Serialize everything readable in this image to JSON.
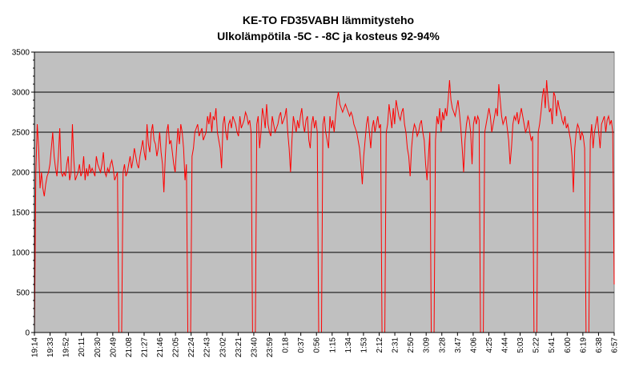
{
  "chart_data": {
    "type": "line",
    "title": "KE-TO FD35VABH lämmitysteho",
    "subtitle": "Ulkolämpötila  -5C - -8C ja kosteus 92-94%",
    "xlabel": "",
    "ylabel": "",
    "ylim": [
      0,
      3500
    ],
    "yticks": [
      0,
      500,
      1000,
      1500,
      2000,
      2500,
      3000,
      3500
    ],
    "ytick_labels": [
      "0",
      "500",
      "1000",
      "1500",
      "2000",
      "2500",
      "3000",
      "3500"
    ],
    "x_tick_labels": [
      "19:14",
      "19:33",
      "19:52",
      "20:11",
      "20:30",
      "20:49",
      "21:08",
      "21:27",
      "21:46",
      "22:05",
      "22:24",
      "22:43",
      "23:02",
      "23:21",
      "23:40",
      "23:59",
      "0:18",
      "0:37",
      "0:56",
      "1:15",
      "1:34",
      "1:53",
      "2:12",
      "2:31",
      "2:50",
      "3:09",
      "3:28",
      "3:47",
      "4:06",
      "4:25",
      "4:44",
      "5:03",
      "5:22",
      "5:41",
      "6:00",
      "6:19",
      "6:38",
      "6:57"
    ],
    "grid": "horizontal",
    "legend": "none",
    "plot_background": "#C0C0C0",
    "line_color": "#FF0000",
    "series": [
      {
        "values": [
          0,
          2000,
          2600,
          2300,
          1800,
          2000,
          1800,
          1700,
          1850,
          1950,
          2000,
          2100,
          2300,
          2500,
          2200,
          2050,
          1950,
          2200,
          2550,
          2000,
          1950,
          2000,
          1950,
          2100,
          2200,
          1900,
          2000,
          2600,
          2150,
          1900,
          1950,
          2000,
          2100,
          1950,
          2000,
          2200,
          1900,
          2050,
          1950,
          2100,
          2000,
          2050,
          2000,
          1950,
          2200,
          2100,
          2050,
          2000,
          2100,
          2250,
          2000,
          1950,
          2050,
          2000,
          2100,
          2150,
          2050,
          1900,
          1950,
          2000,
          0,
          0,
          0,
          2000,
          2100,
          1950,
          2000,
          2100,
          2200,
          2050,
          2150,
          2300,
          2200,
          2100,
          2050,
          2200,
          2300,
          2400,
          2250,
          2150,
          2600,
          2350,
          2250,
          2500,
          2600,
          2400,
          2350,
          2200,
          2300,
          2500,
          2250,
          2100,
          1750,
          2200,
          2500,
          2600,
          2350,
          2400,
          2250,
          2100,
          2000,
          2300,
          2550,
          2350,
          2600,
          2500,
          2300,
          1900,
          2100,
          0,
          0,
          0,
          2200,
          2300,
          2500,
          2550,
          2600,
          2450,
          2500,
          2550,
          2400,
          2450,
          2500,
          2700,
          2600,
          2750,
          2500,
          2700,
          2650,
          2800,
          2500,
          2400,
          2300,
          2050,
          2600,
          2700,
          2500,
          2400,
          2600,
          2650,
          2550,
          2700,
          2650,
          2600,
          2500,
          2450,
          2700,
          2550,
          2600,
          2650,
          2750,
          2700,
          2600,
          2650,
          2500,
          0,
          0,
          0,
          2600,
          2700,
          2300,
          2500,
          2800,
          2700,
          2550,
          2850,
          2600,
          2500,
          2450,
          2700,
          2600,
          2500,
          2550,
          2600,
          2700,
          2750,
          2600,
          2650,
          2700,
          2800,
          2500,
          2300,
          2000,
          2400,
          2700,
          2600,
          2500,
          2650,
          2550,
          2700,
          2800,
          2600,
          2500,
          2650,
          2700,
          2400,
          2300,
          2600,
          2700,
          2550,
          2650,
          2500,
          0,
          0,
          0,
          2600,
          2700,
          2500,
          2400,
          2300,
          2700,
          2550,
          2650,
          2500,
          2700,
          2900,
          3000,
          2850,
          2800,
          2750,
          2800,
          2850,
          2800,
          2750,
          2700,
          2750,
          2700,
          2600,
          2550,
          2500,
          2400,
          2300,
          2100,
          1850,
          2200,
          2400,
          2600,
          2700,
          2500,
          2300,
          2550,
          2650,
          2500,
          2600,
          2700,
          2550,
          2600,
          0,
          0,
          0,
          2500,
          2600,
          2850,
          2700,
          2550,
          2800,
          2600,
          2900,
          2800,
          2700,
          2650,
          2750,
          2800,
          2600,
          2500,
          2300,
          2200,
          1950,
          2300,
          2500,
          2600,
          2550,
          2450,
          2500,
          2600,
          2650,
          2500,
          2400,
          2100,
          1900,
          2200,
          2500,
          0,
          0,
          0,
          2400,
          2700,
          2600,
          2800,
          2500,
          2750,
          2650,
          2800,
          2700,
          2900,
          3150,
          2900,
          2800,
          2750,
          2700,
          2800,
          2900,
          2750,
          2550,
          2300,
          2000,
          2400,
          2600,
          2700,
          2650,
          2500,
          2100,
          2600,
          2700,
          2600,
          2700,
          2650,
          0,
          0,
          0,
          2500,
          2600,
          2700,
          2800,
          2700,
          2500,
          2600,
          2700,
          2800,
          2700,
          3100,
          2900,
          2700,
          2600,
          2650,
          2700,
          2550,
          2400,
          2100,
          2300,
          2600,
          2700,
          2650,
          2750,
          2600,
          2700,
          2800,
          2700,
          2600,
          2500,
          2550,
          2650,
          2500,
          2400,
          2450,
          0,
          0,
          0,
          2500,
          2600,
          2750,
          2950,
          3050,
          2800,
          3150,
          2900,
          2750,
          2800,
          2600,
          3000,
          2950,
          2700,
          2900,
          2800,
          2750,
          2650,
          2600,
          2700,
          2550,
          2600,
          2500,
          2400,
          2200,
          1750,
          2300,
          2500,
          2600,
          2550,
          2400,
          2500,
          2450,
          2300,
          0,
          0,
          0,
          2400,
          2600,
          2300,
          2500,
          2600,
          2700,
          2500,
          2300,
          2600,
          2650,
          2700,
          2500,
          2650,
          2700,
          2600,
          2650,
          2500,
          600
        ]
      }
    ]
  }
}
